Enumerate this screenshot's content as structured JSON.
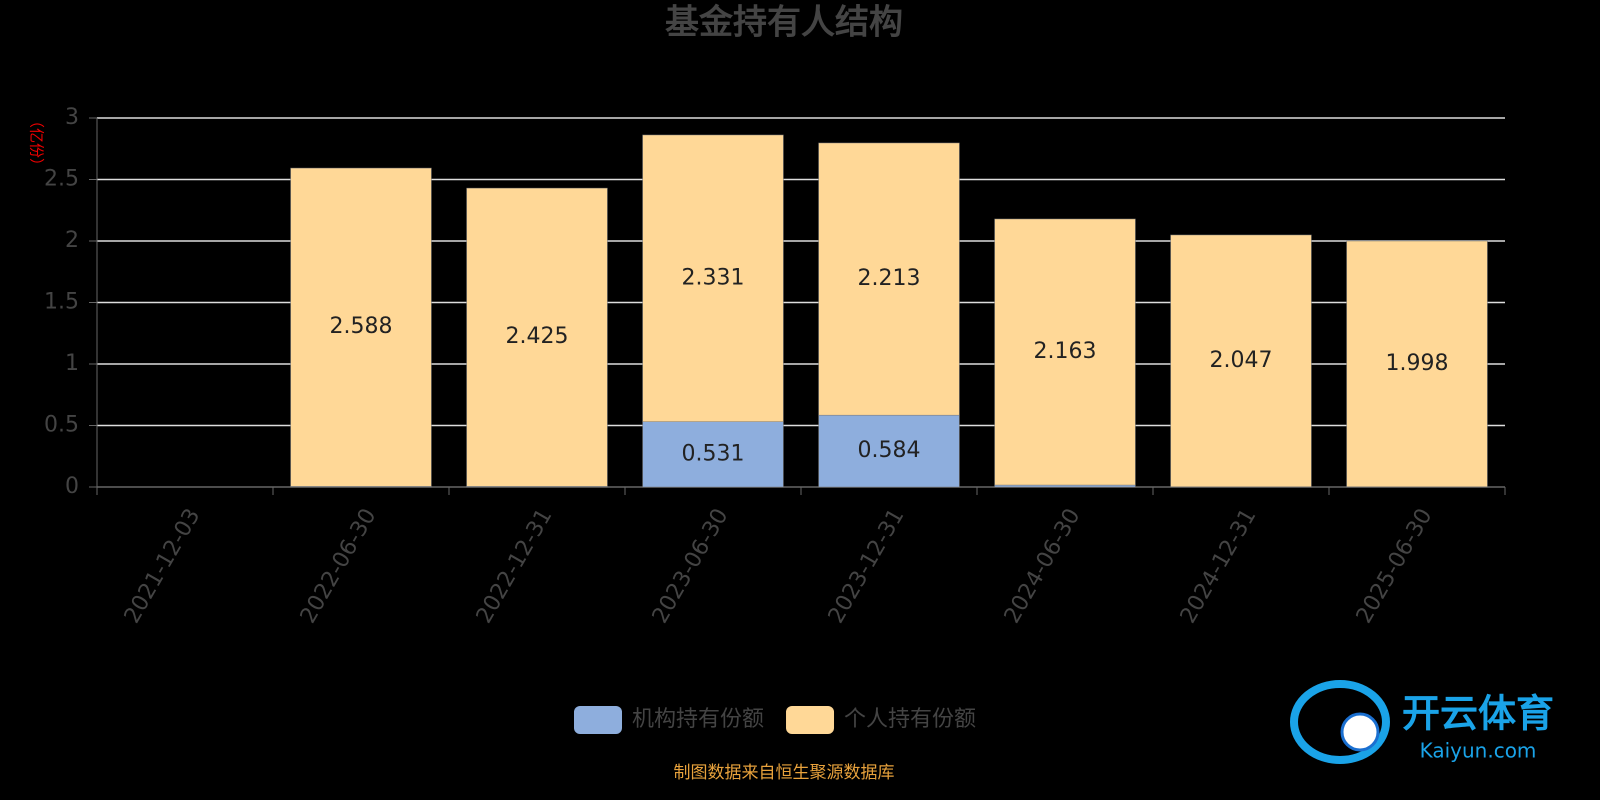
{
  "chart_data": {
    "type": "bar",
    "stacked": true,
    "title": "基金持有人结构",
    "y_label": "（亿份）",
    "categories": [
      "2021-12-03",
      "2022-06-30",
      "2022-12-31",
      "2023-06-30",
      "2023-12-31",
      "2024-06-30",
      "2024-12-31",
      "2025-06-30"
    ],
    "series": [
      {
        "name": "机构持有份额",
        "color": "#8eaedd",
        "values": [
          null,
          0.005,
          0.005,
          0.531,
          0.584,
          0.016,
          0.002,
          0.002
        ]
      },
      {
        "name": "个人持有份额",
        "color": "#ffd897",
        "values": [
          null,
          2.588,
          2.425,
          2.331,
          2.213,
          2.163,
          2.047,
          1.998
        ]
      }
    ],
    "ylim": [
      0,
      3
    ],
    "yticks": [
      0,
      0.5,
      1,
      1.5,
      2,
      2.5,
      3
    ],
    "grid": true,
    "legend": "bottom",
    "source": "制图数据来自恒生聚源数据库",
    "watermark": {
      "brand": "开云体育",
      "site": "Kaiyun.com"
    }
  }
}
